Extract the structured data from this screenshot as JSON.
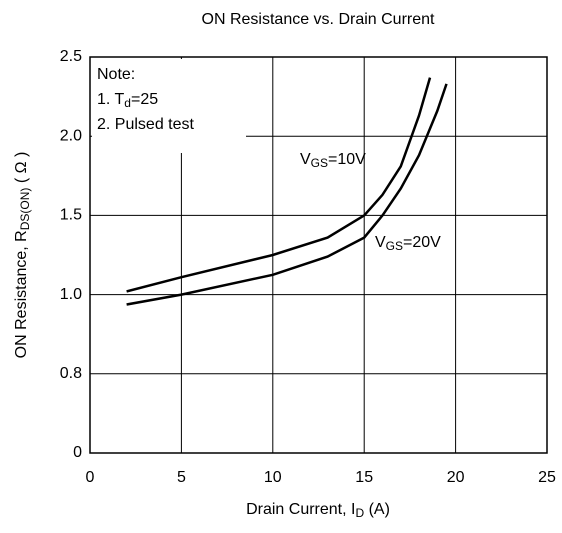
{
  "chart_data": {
    "type": "line",
    "title": "ON Resistance vs. Drain Current",
    "x_label": [
      "Drain Current, I",
      "D",
      " (A)"
    ],
    "y_label": [
      "ON Resistance, R",
      "DS(ON)",
      " ( Ω )"
    ],
    "annotations": [
      [
        "Note:"
      ],
      [
        "1. T",
        "d",
        "=25"
      ],
      [
        "2. Pulsed test"
      ]
    ],
    "xlim": [
      0,
      25
    ],
    "xticks": [
      0,
      5,
      10,
      15,
      20,
      25
    ],
    "ylim": [
      0,
      2.5
    ],
    "yticks": [
      0,
      0.8,
      {
        "value": 1,
        "label": "1.0"
      },
      1.5,
      {
        "value": 2,
        "label": "2.0"
      },
      2.5
    ],
    "grid": true,
    "series": [
      {
        "name": [
          "V",
          "GS",
          "=10V"
        ],
        "color": "#000000",
        "x": [
          2,
          5,
          10,
          13,
          15,
          16,
          17,
          18,
          18.6
        ],
        "values": [
          1.02,
          1.11,
          1.25,
          1.36,
          1.5,
          1.63,
          1.81,
          2.13,
          2.37
        ]
      },
      {
        "name": [
          "V",
          "GS",
          "=20V"
        ],
        "color": "#000000",
        "x": [
          2,
          5,
          10,
          13,
          15,
          16,
          17,
          18,
          19,
          19.5
        ],
        "values": [
          0.975,
          1.0,
          1.125,
          1.24,
          1.36,
          1.5,
          1.67,
          1.88,
          2.16,
          2.33
        ]
      }
    ]
  }
}
